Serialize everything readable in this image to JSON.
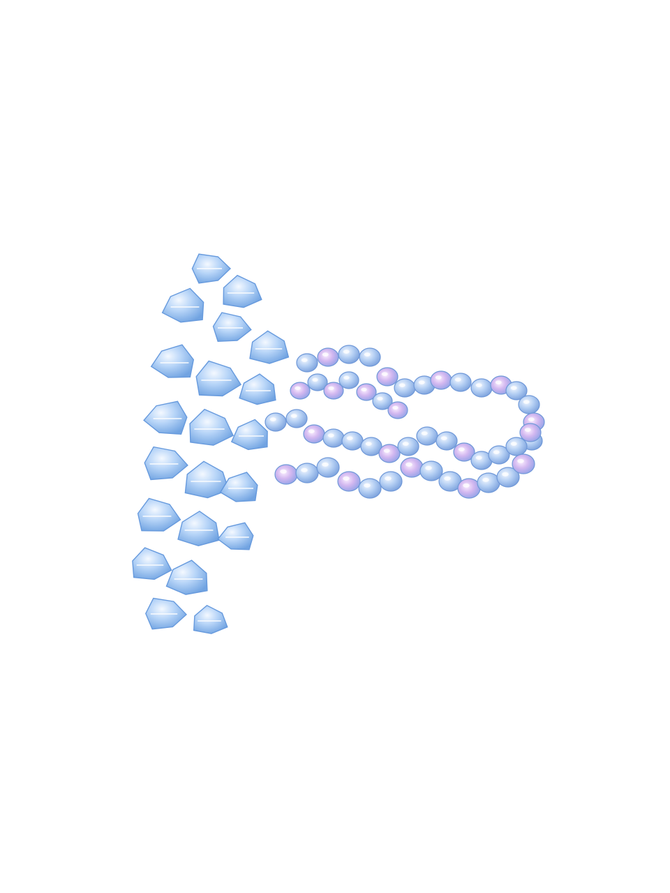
{
  "photo": {
    "subject": "beaded-ring",
    "background_color": "#ffffff",
    "colors": {
      "crystal_light": "#d6e8ff",
      "crystal_mid": "#9cc4f4",
      "crystal_dark": "#5f95dc",
      "seed_light": "#dcebff",
      "seed_mid": "#a9c8f2",
      "seed_dark": "#6f98d8",
      "iridescent_pink": "#e8b6e6",
      "iridescent_violet": "#b79ae8"
    }
  }
}
